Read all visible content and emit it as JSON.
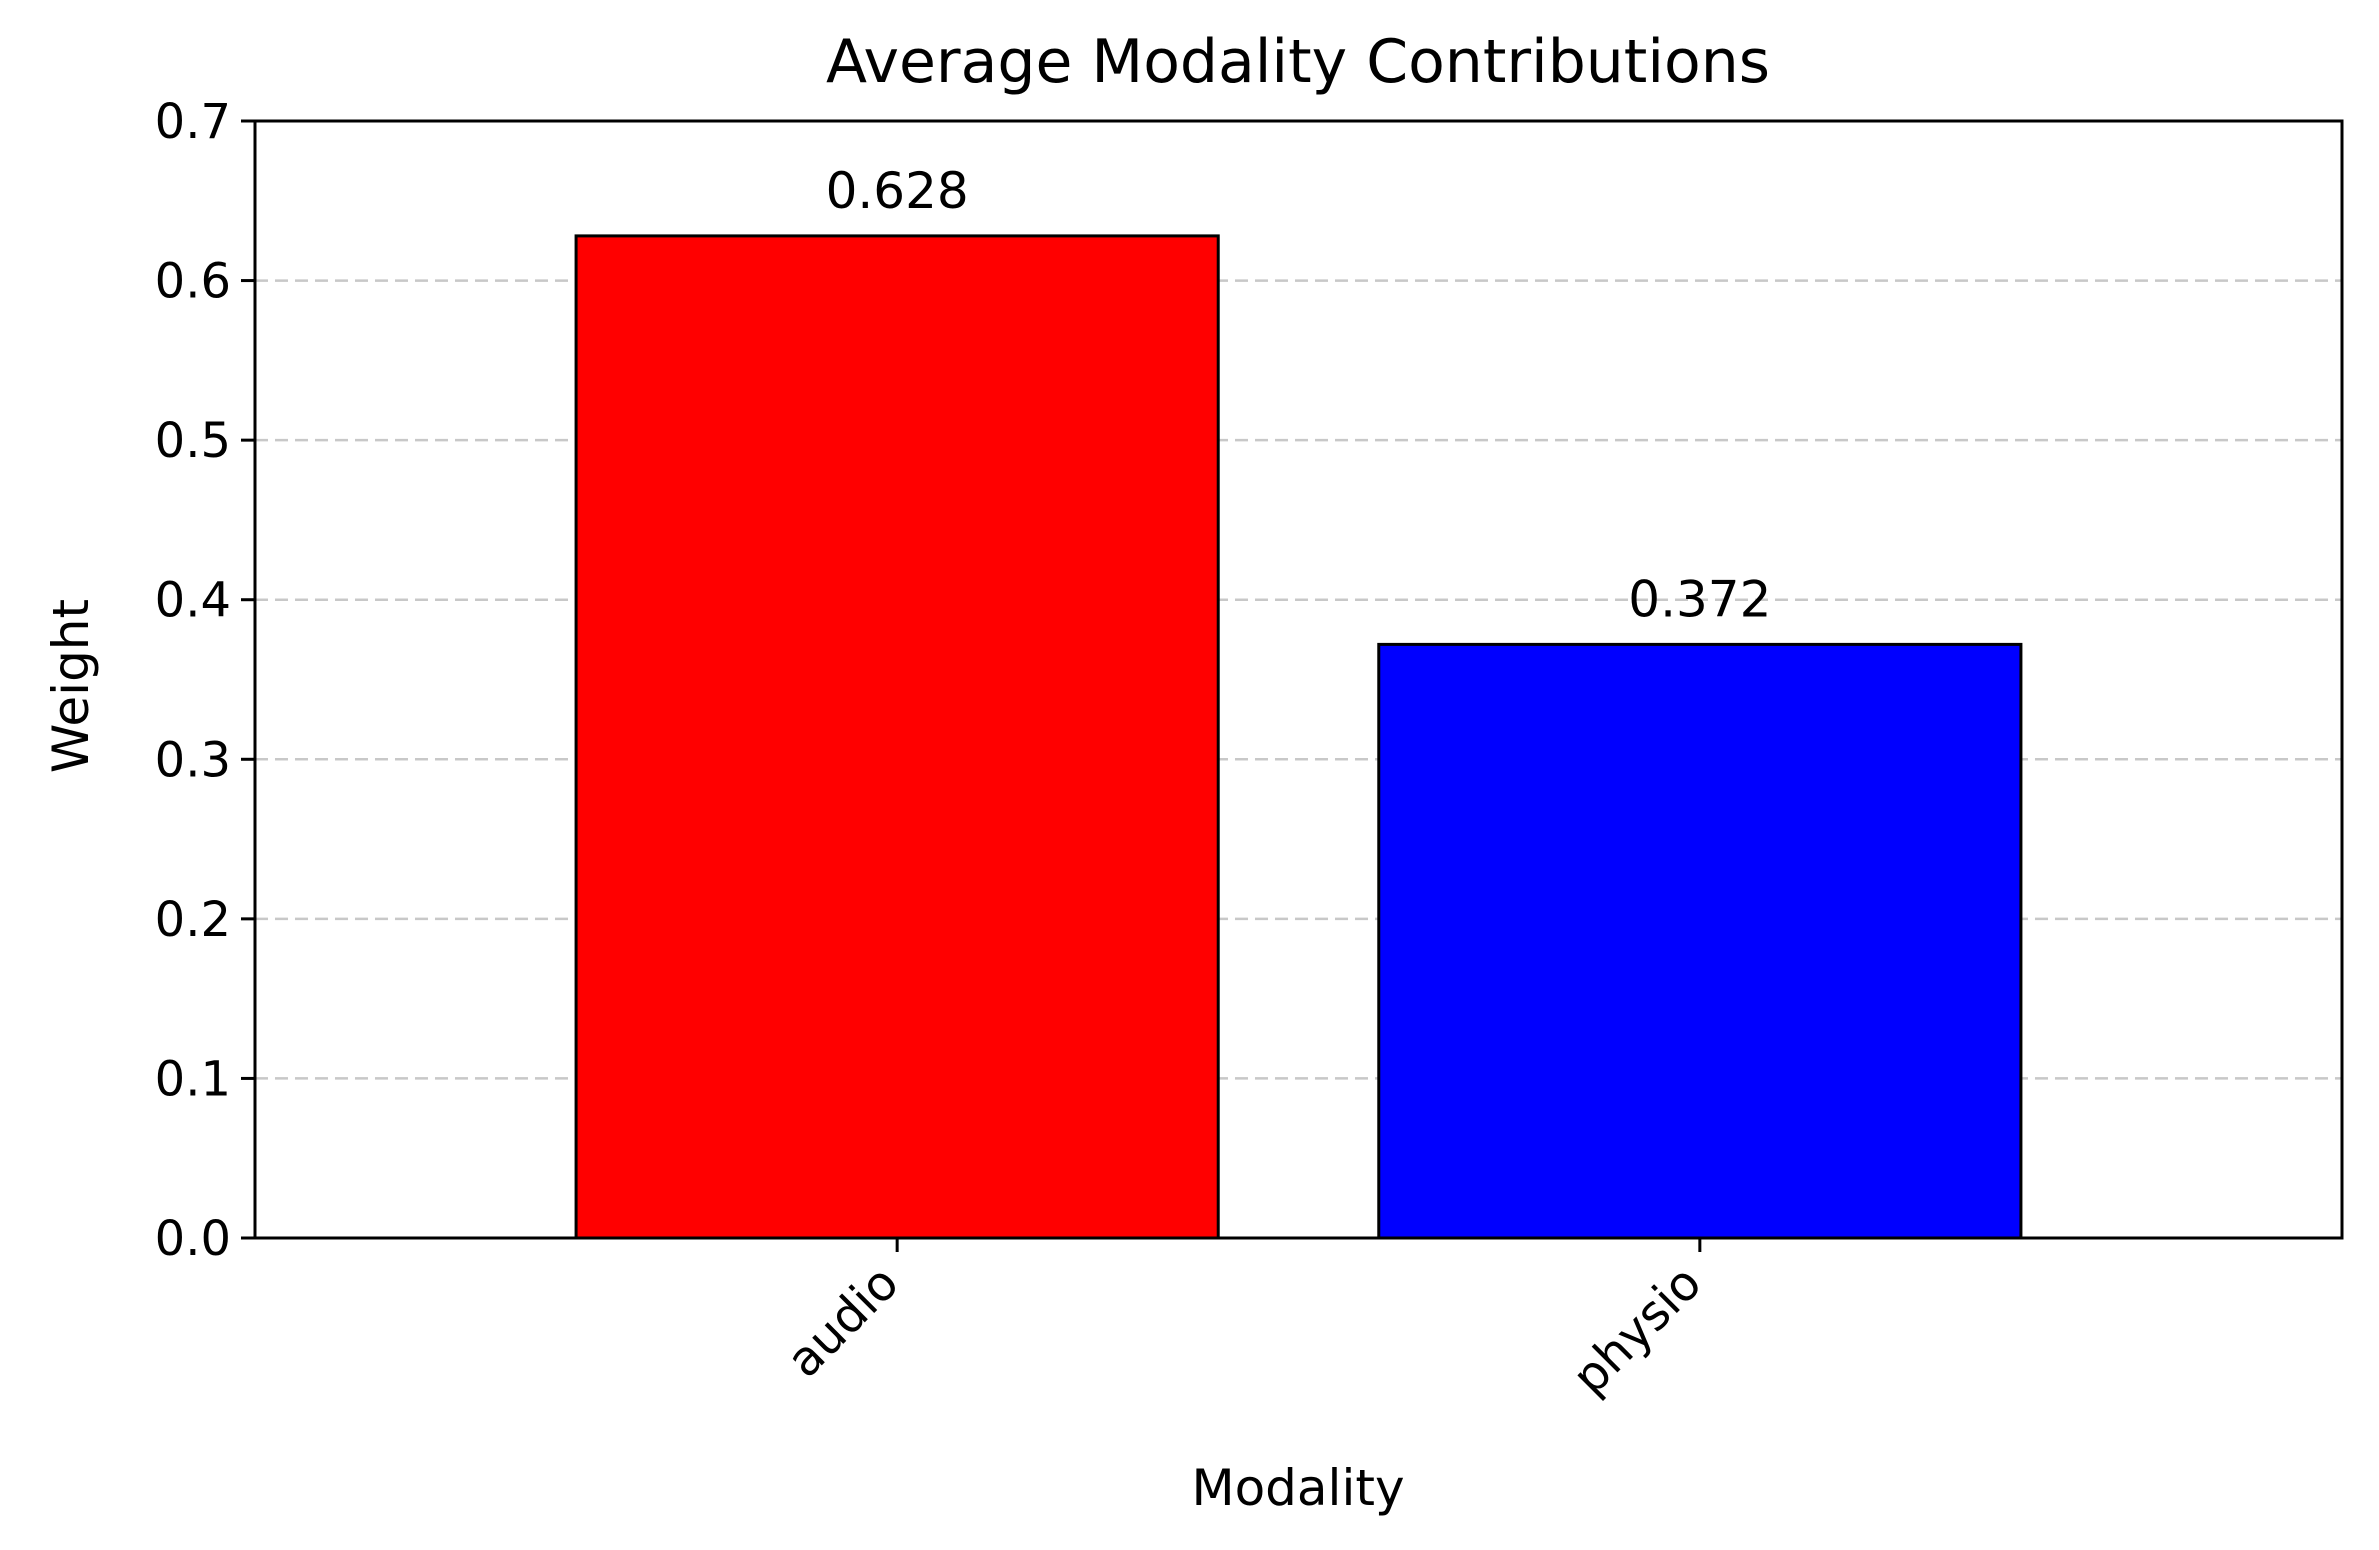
{
  "chart_data": {
    "type": "bar",
    "title": "Average Modality Contributions",
    "xlabel": "Modality",
    "ylabel": "Weight",
    "categories": [
      "audio",
      "physio"
    ],
    "values": [
      0.628,
      0.372
    ],
    "value_labels": [
      "0.628",
      "0.372"
    ],
    "colors": [
      "#ff0000",
      "#0000ff"
    ],
    "edge_color": "#000000",
    "ylim": [
      0,
      0.7
    ],
    "yticks": [
      0.0,
      0.1,
      0.2,
      0.3,
      0.4,
      0.5,
      0.6,
      0.7
    ],
    "ytick_labels": [
      "0.0",
      "0.1",
      "0.2",
      "0.3",
      "0.4",
      "0.5",
      "0.6",
      "0.7"
    ],
    "grid": {
      "axis": "y",
      "style": "dashed",
      "color": "#c8c8c8"
    },
    "xtick_rotation": -45
  }
}
